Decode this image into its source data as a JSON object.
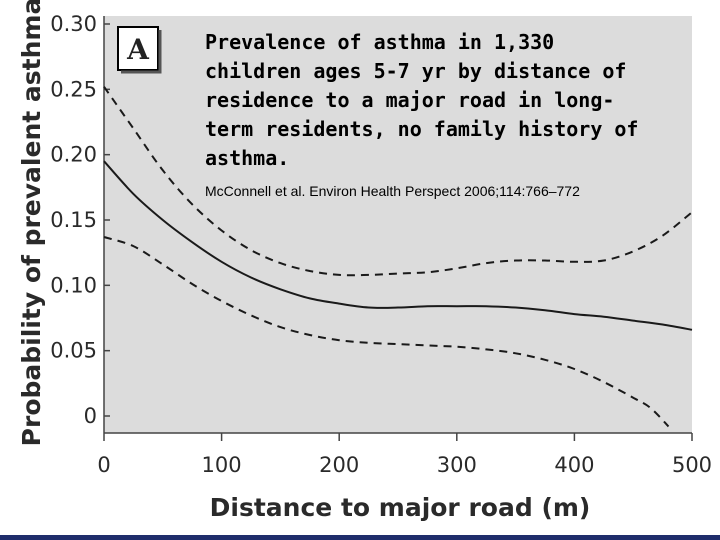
{
  "chart_data": {
    "type": "line",
    "panel_label": "A",
    "title_lines": [
      "Prevalence of asthma in 1,330",
      "children ages 5-7 yr by distance of",
      "residence to a major road in long-",
      "term residents, no family history of",
      "asthma."
    ],
    "citation": "McConnell et al. Environ Health Perspect 2006;114:766–772",
    "xlabel": "Distance to major road (m)",
    "ylabel": "Probability of prevalent asthma",
    "xlim": [
      0,
      500
    ],
    "ylim": [
      0,
      0.3
    ],
    "x_ticks": [
      0,
      100,
      200,
      300,
      400,
      500
    ],
    "y_ticks": [
      0,
      0.05,
      0.1,
      0.15,
      0.2,
      0.25,
      0.3
    ],
    "x_tick_labels": [
      "0",
      "100",
      "200",
      "300",
      "400",
      "500"
    ],
    "y_tick_labels": [
      "0",
      "0.05",
      "0.10",
      "0.15",
      "0.20",
      "0.25",
      "0.30"
    ],
    "grid": false,
    "series": [
      {
        "style": "solid",
        "x": [
          0,
          25,
          50,
          75,
          100,
          125,
          150,
          175,
          200,
          225,
          250,
          275,
          300,
          325,
          350,
          375,
          400,
          425,
          450,
          475,
          500
        ],
        "y": [
          0.195,
          0.17,
          0.15,
          0.133,
          0.118,
          0.106,
          0.097,
          0.09,
          0.086,
          0.083,
          0.083,
          0.084,
          0.084,
          0.084,
          0.083,
          0.081,
          0.078,
          0.076,
          0.073,
          0.07,
          0.066
        ]
      },
      {
        "style": "dashed",
        "x": [
          0,
          25,
          50,
          75,
          100,
          125,
          150,
          175,
          200,
          225,
          250,
          275,
          300,
          325,
          350,
          375,
          400,
          425,
          450,
          475,
          500
        ],
        "y": [
          0.252,
          0.22,
          0.188,
          0.162,
          0.142,
          0.127,
          0.117,
          0.111,
          0.108,
          0.108,
          0.109,
          0.11,
          0.113,
          0.117,
          0.119,
          0.119,
          0.118,
          0.119,
          0.126,
          0.138,
          0.156
        ]
      },
      {
        "style": "dashed",
        "x": [
          0,
          25,
          50,
          75,
          100,
          125,
          150,
          175,
          200,
          225,
          250,
          275,
          300,
          325,
          350,
          375,
          400,
          425,
          450,
          465,
          480
        ],
        "y": [
          0.137,
          0.13,
          0.116,
          0.101,
          0.088,
          0.077,
          0.068,
          0.062,
          0.058,
          0.056,
          0.055,
          0.054,
          0.053,
          0.051,
          0.048,
          0.043,
          0.036,
          0.026,
          0.014,
          0.006,
          -0.008
        ]
      }
    ]
  }
}
